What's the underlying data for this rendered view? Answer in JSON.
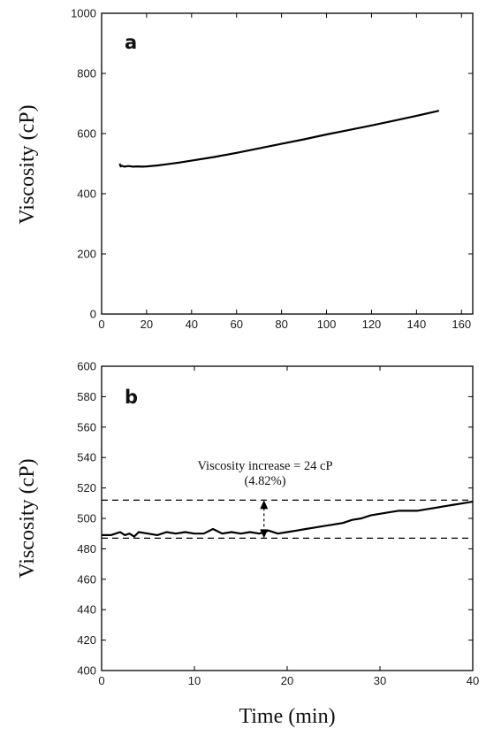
{
  "chart_data": [
    {
      "type": "line",
      "panel_label": "a",
      "title": "",
      "xlabel": "",
      "ylabel": "Viscosity (cP)",
      "xlim": [
        0,
        165
      ],
      "ylim": [
        0,
        1000
      ],
      "xticks": [
        "0",
        "20",
        "40",
        "60",
        "80",
        "100",
        "120",
        "140",
        "160"
      ],
      "yticks": [
        "0",
        "200",
        "400",
        "600",
        "800",
        "1000"
      ],
      "grid": false,
      "color": "#000000",
      "series": [
        {
          "x": [
            8,
            8.5,
            9,
            10,
            12,
            14,
            16,
            18,
            20,
            25,
            30,
            35,
            40,
            50,
            60,
            70,
            80,
            90,
            100,
            110,
            120,
            130,
            140,
            150
          ],
          "y": [
            500,
            491,
            493,
            490,
            492,
            490,
            491,
            490,
            491,
            494,
            499,
            504,
            510,
            522,
            536,
            551,
            566,
            581,
            597,
            612,
            627,
            643,
            659,
            676
          ]
        }
      ]
    },
    {
      "type": "line",
      "panel_label": "b",
      "title": "",
      "xlabel": "Time (min)",
      "ylabel": "Viscosity (cP)",
      "xlim": [
        0,
        40
      ],
      "ylim": [
        400,
        600
      ],
      "xticks": [
        "0",
        "10",
        "20",
        "30",
        "40"
      ],
      "yticks": [
        "400",
        "420",
        "440",
        "460",
        "480",
        "500",
        "520",
        "540",
        "560",
        "580",
        "600"
      ],
      "grid": false,
      "color": "#000000",
      "series": [
        {
          "x": [
            0,
            1,
            2,
            2.5,
            3,
            3.5,
            4,
            5,
            6,
            7,
            8,
            9,
            10,
            11,
            12,
            13,
            14,
            15,
            16,
            17,
            17.5,
            18,
            19,
            20,
            21,
            22,
            23,
            24,
            25,
            26,
            27,
            28,
            29,
            30,
            31,
            32,
            33,
            34,
            35,
            36,
            37,
            38,
            39,
            40
          ],
          "y": [
            489,
            489,
            491,
            489,
            490,
            488,
            491,
            490,
            489,
            491,
            490,
            491,
            490,
            490,
            493,
            490,
            491,
            490,
            491,
            490,
            491,
            492,
            490,
            491,
            492,
            493,
            494,
            495,
            496,
            497,
            499,
            500,
            502,
            503,
            504,
            505,
            505,
            505,
            506,
            507,
            508,
            509,
            510,
            511
          ]
        }
      ],
      "reference_lines": [
        {
          "y": 512,
          "style": "dashed"
        },
        {
          "y": 487,
          "style": "dashed"
        }
      ],
      "annotation": {
        "line1": "Viscosity increase = 24 cP",
        "line2": "(4.82%)",
        "arrow_x": 17.5,
        "arrow_from": 512,
        "arrow_to": 487
      }
    }
  ]
}
